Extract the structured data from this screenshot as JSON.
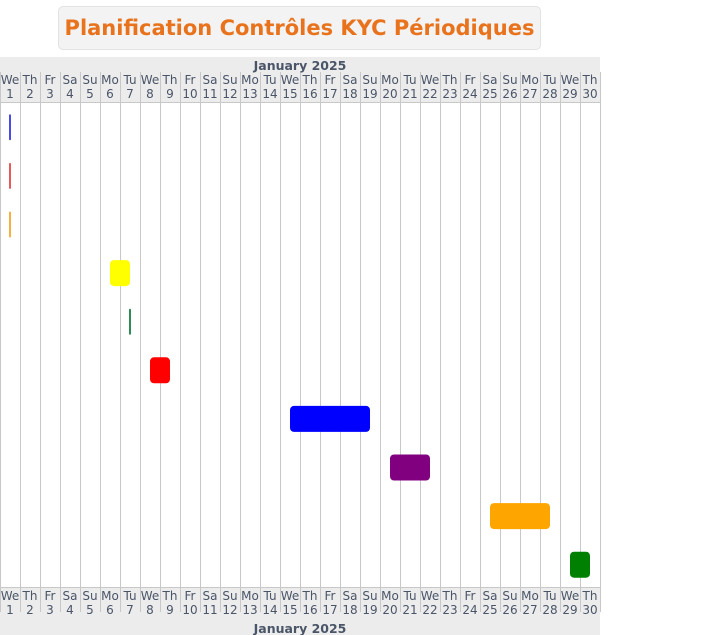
{
  "title": "Planification Contrôles KYC Périodiques",
  "chart_data": {
    "type": "gantt",
    "title": "Planification Contrôles KYC Périodiques",
    "month_label": "January 2025",
    "x_start": "2025-01-01",
    "x_end": "2025-01-31",
    "day_names": [
      "We",
      "Th",
      "Fr",
      "Sa",
      "Su",
      "Mo",
      "Tu",
      "We",
      "Th",
      "Fr",
      "Sa",
      "Su",
      "Mo",
      "Tu",
      "We",
      "Th",
      "Fr",
      "Sa",
      "Su",
      "Mo",
      "Tu",
      "We",
      "Th",
      "Fr",
      "Sa",
      "Su",
      "Mo",
      "Tu",
      "We",
      "Th"
    ],
    "day_numbers": [
      "1",
      "2",
      "3",
      "4",
      "5",
      "6",
      "7",
      "8",
      "9",
      "10",
      "11",
      "12",
      "13",
      "14",
      "15",
      "16",
      "17",
      "18",
      "19",
      "20",
      "21",
      "22",
      "23",
      "24",
      "25",
      "26",
      "27",
      "28",
      "29",
      "30"
    ],
    "tasks": [
      {
        "start": "2025-01-01",
        "end": "2025-01-01",
        "color": "#4a4ae8"
      },
      {
        "start": "2025-01-01",
        "end": "2025-01-01",
        "color": "#e85a5a"
      },
      {
        "start": "2025-01-01",
        "end": "2025-01-01",
        "color": "#f5b041"
      },
      {
        "start": "2025-01-06",
        "end": "2025-01-07",
        "color": "#ffff00"
      },
      {
        "start": "2025-01-07",
        "end": "2025-01-07",
        "color": "#2e8b57"
      },
      {
        "start": "2025-01-08",
        "end": "2025-01-09",
        "color": "#ff0000"
      },
      {
        "start": "2025-01-15",
        "end": "2025-01-19",
        "color": "#0000ff"
      },
      {
        "start": "2025-01-20",
        "end": "2025-01-22",
        "color": "#800080"
      },
      {
        "start": "2025-01-25",
        "end": "2025-01-28",
        "color": "#ffa500"
      },
      {
        "start": "2025-01-29",
        "end": "2025-01-30",
        "color": "#008000"
      }
    ]
  }
}
